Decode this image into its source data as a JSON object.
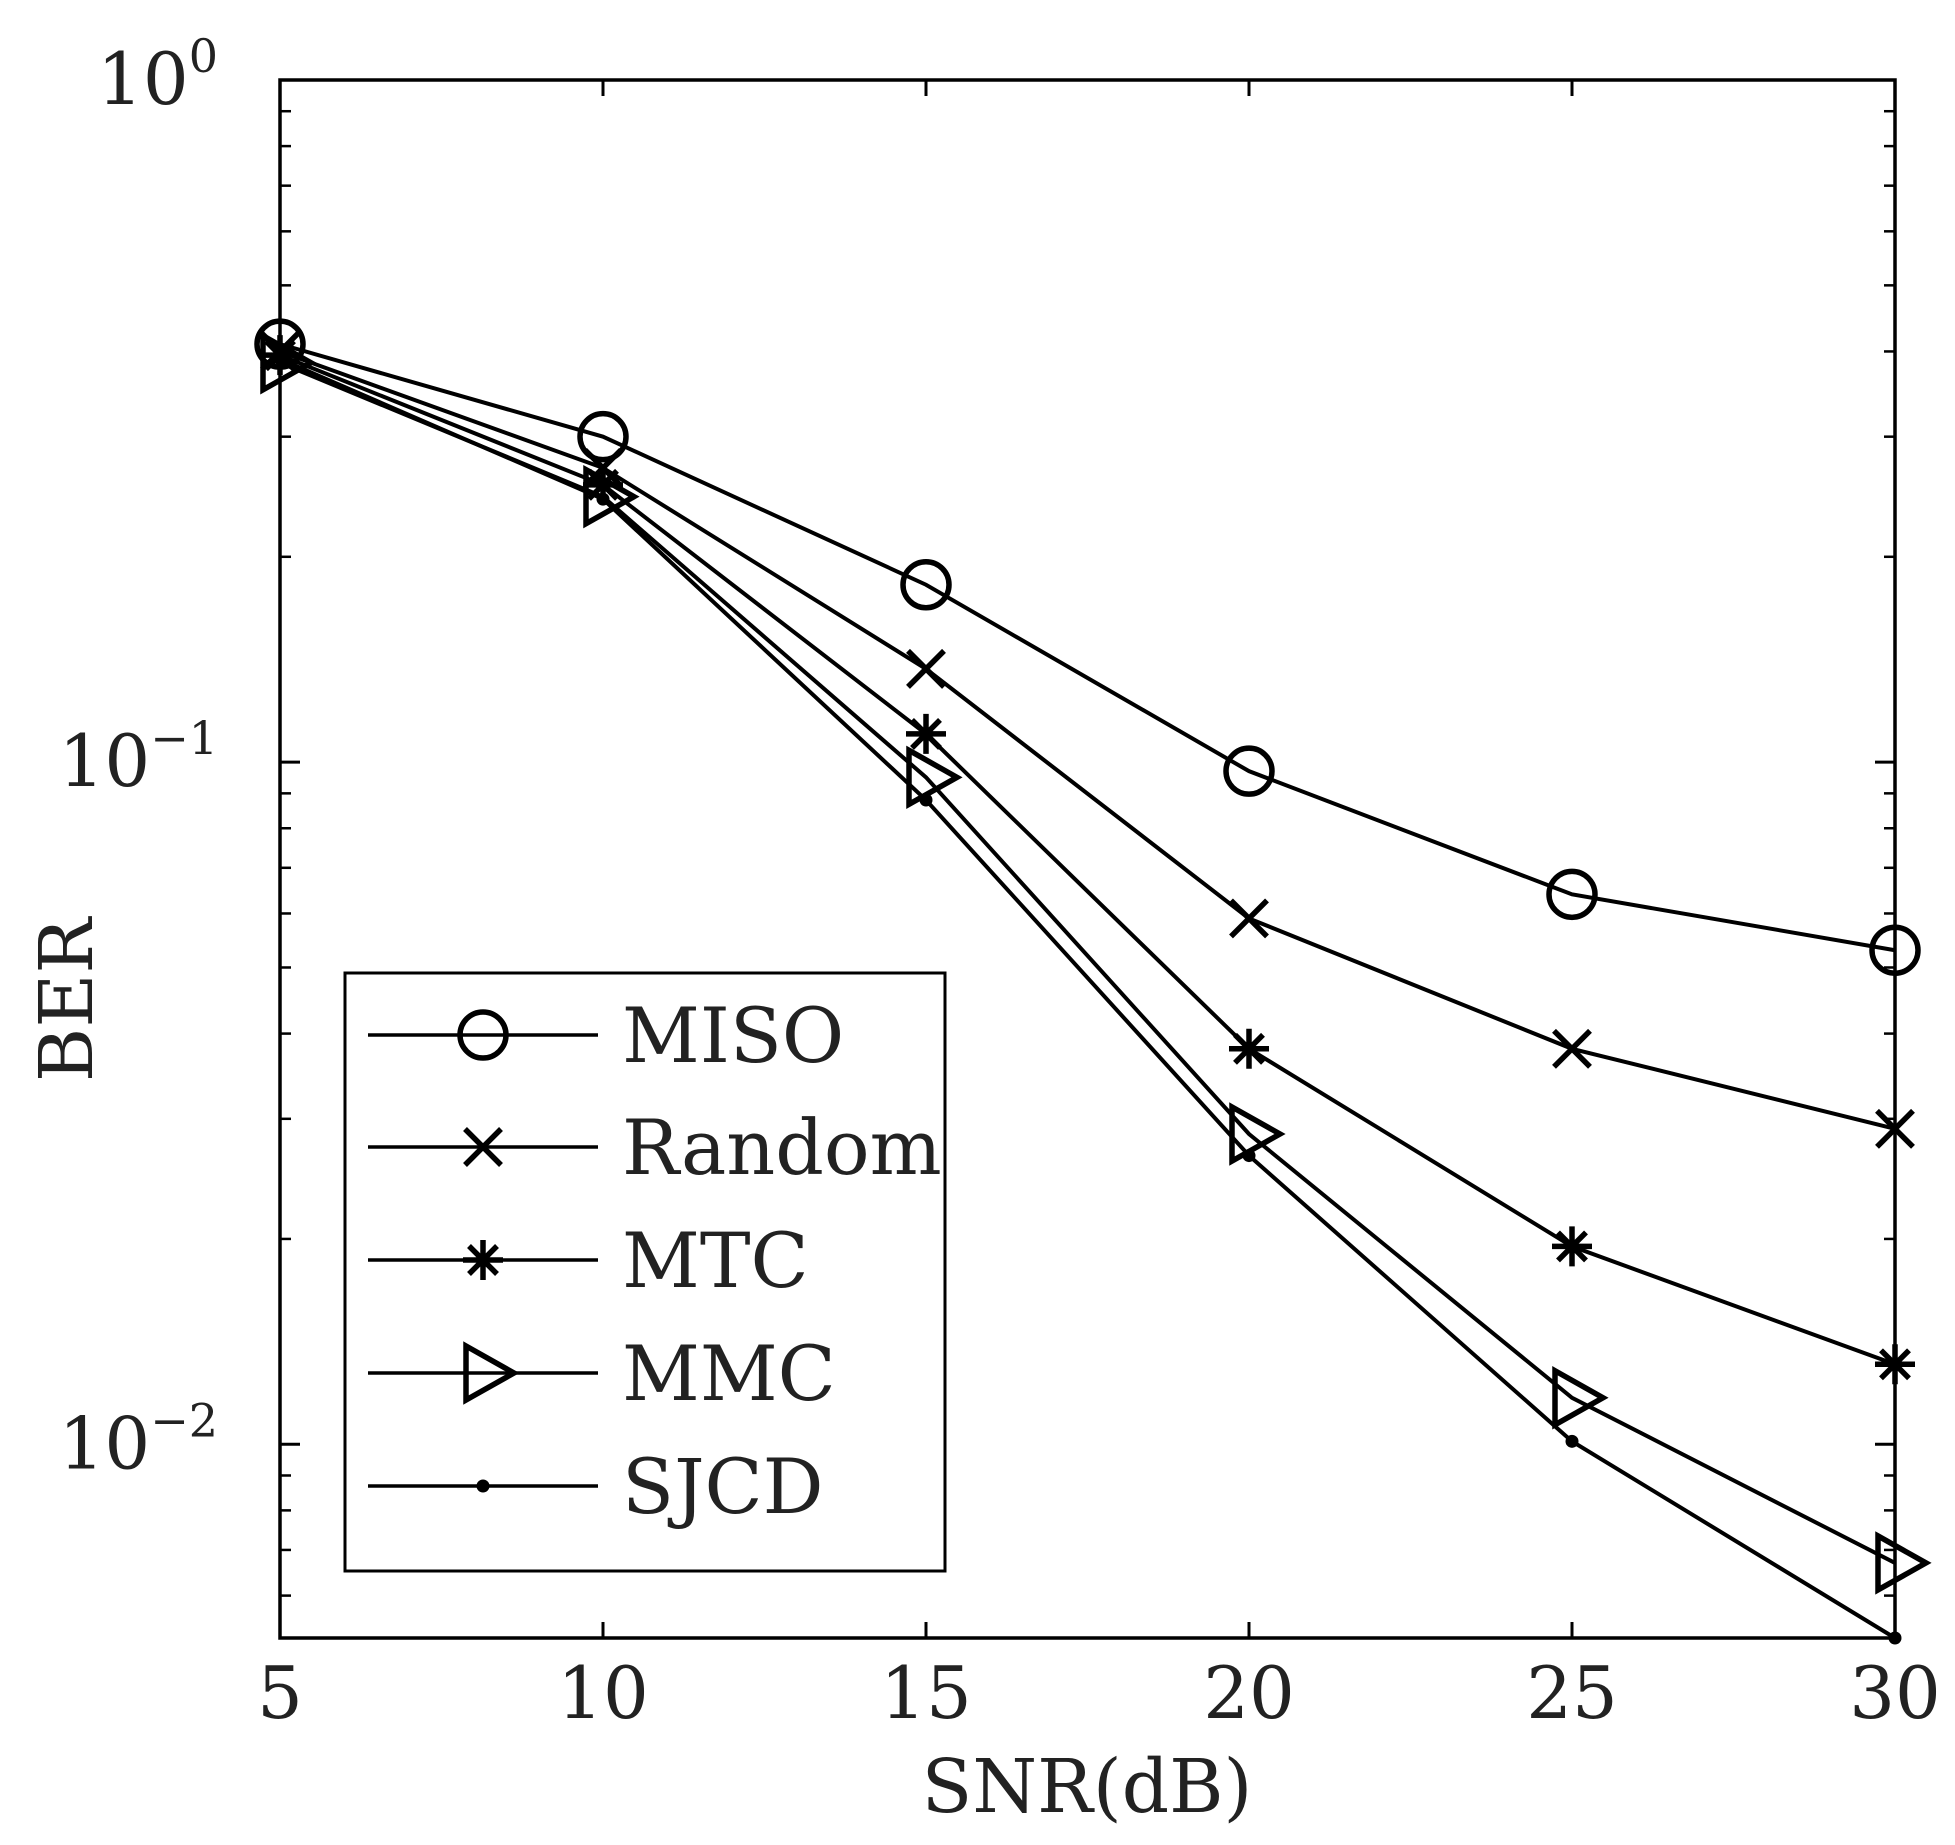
{
  "chart_data": {
    "type": "line",
    "title": "",
    "xlabel": "SNR(dB)",
    "ylabel": "BER",
    "x": [
      5,
      10,
      15,
      20,
      25,
      30
    ],
    "xlim": [
      5,
      30
    ],
    "ylim": [
      0.0052,
      1
    ],
    "yscale": "log",
    "x_ticks": [
      5,
      10,
      15,
      20,
      25,
      30
    ],
    "x_tick_labels": [
      "5",
      "10",
      "15",
      "20",
      "25",
      "30"
    ],
    "y_ticks": [
      {
        "value": 1,
        "base": "10",
        "exp": "0"
      },
      {
        "value": 0.1,
        "base": "10",
        "exp": "−1"
      },
      {
        "value": 0.01,
        "base": "10",
        "exp": "−2"
      }
    ],
    "grid": false,
    "legend_position": "bottom-left",
    "series": [
      {
        "name": "MISO",
        "marker": "circle",
        "values": [
          0.41,
          0.3,
          0.182,
          0.097,
          0.064,
          0.053
        ]
      },
      {
        "name": "Random",
        "marker": "x",
        "values": [
          0.4,
          0.27,
          0.137,
          0.059,
          0.038,
          0.029
        ]
      },
      {
        "name": "MTC",
        "marker": "asterisk",
        "values": [
          0.395,
          0.255,
          0.11,
          0.038,
          0.0195,
          0.0131
        ]
      },
      {
        "name": "MMC",
        "marker": "triangle-right",
        "values": [
          0.385,
          0.245,
          0.095,
          0.0285,
          0.0117,
          0.0067
        ]
      },
      {
        "name": "SJCD",
        "marker": "dot",
        "values": [
          0.39,
          0.243,
          0.088,
          0.0265,
          0.0101,
          0.0052
        ]
      }
    ]
  }
}
